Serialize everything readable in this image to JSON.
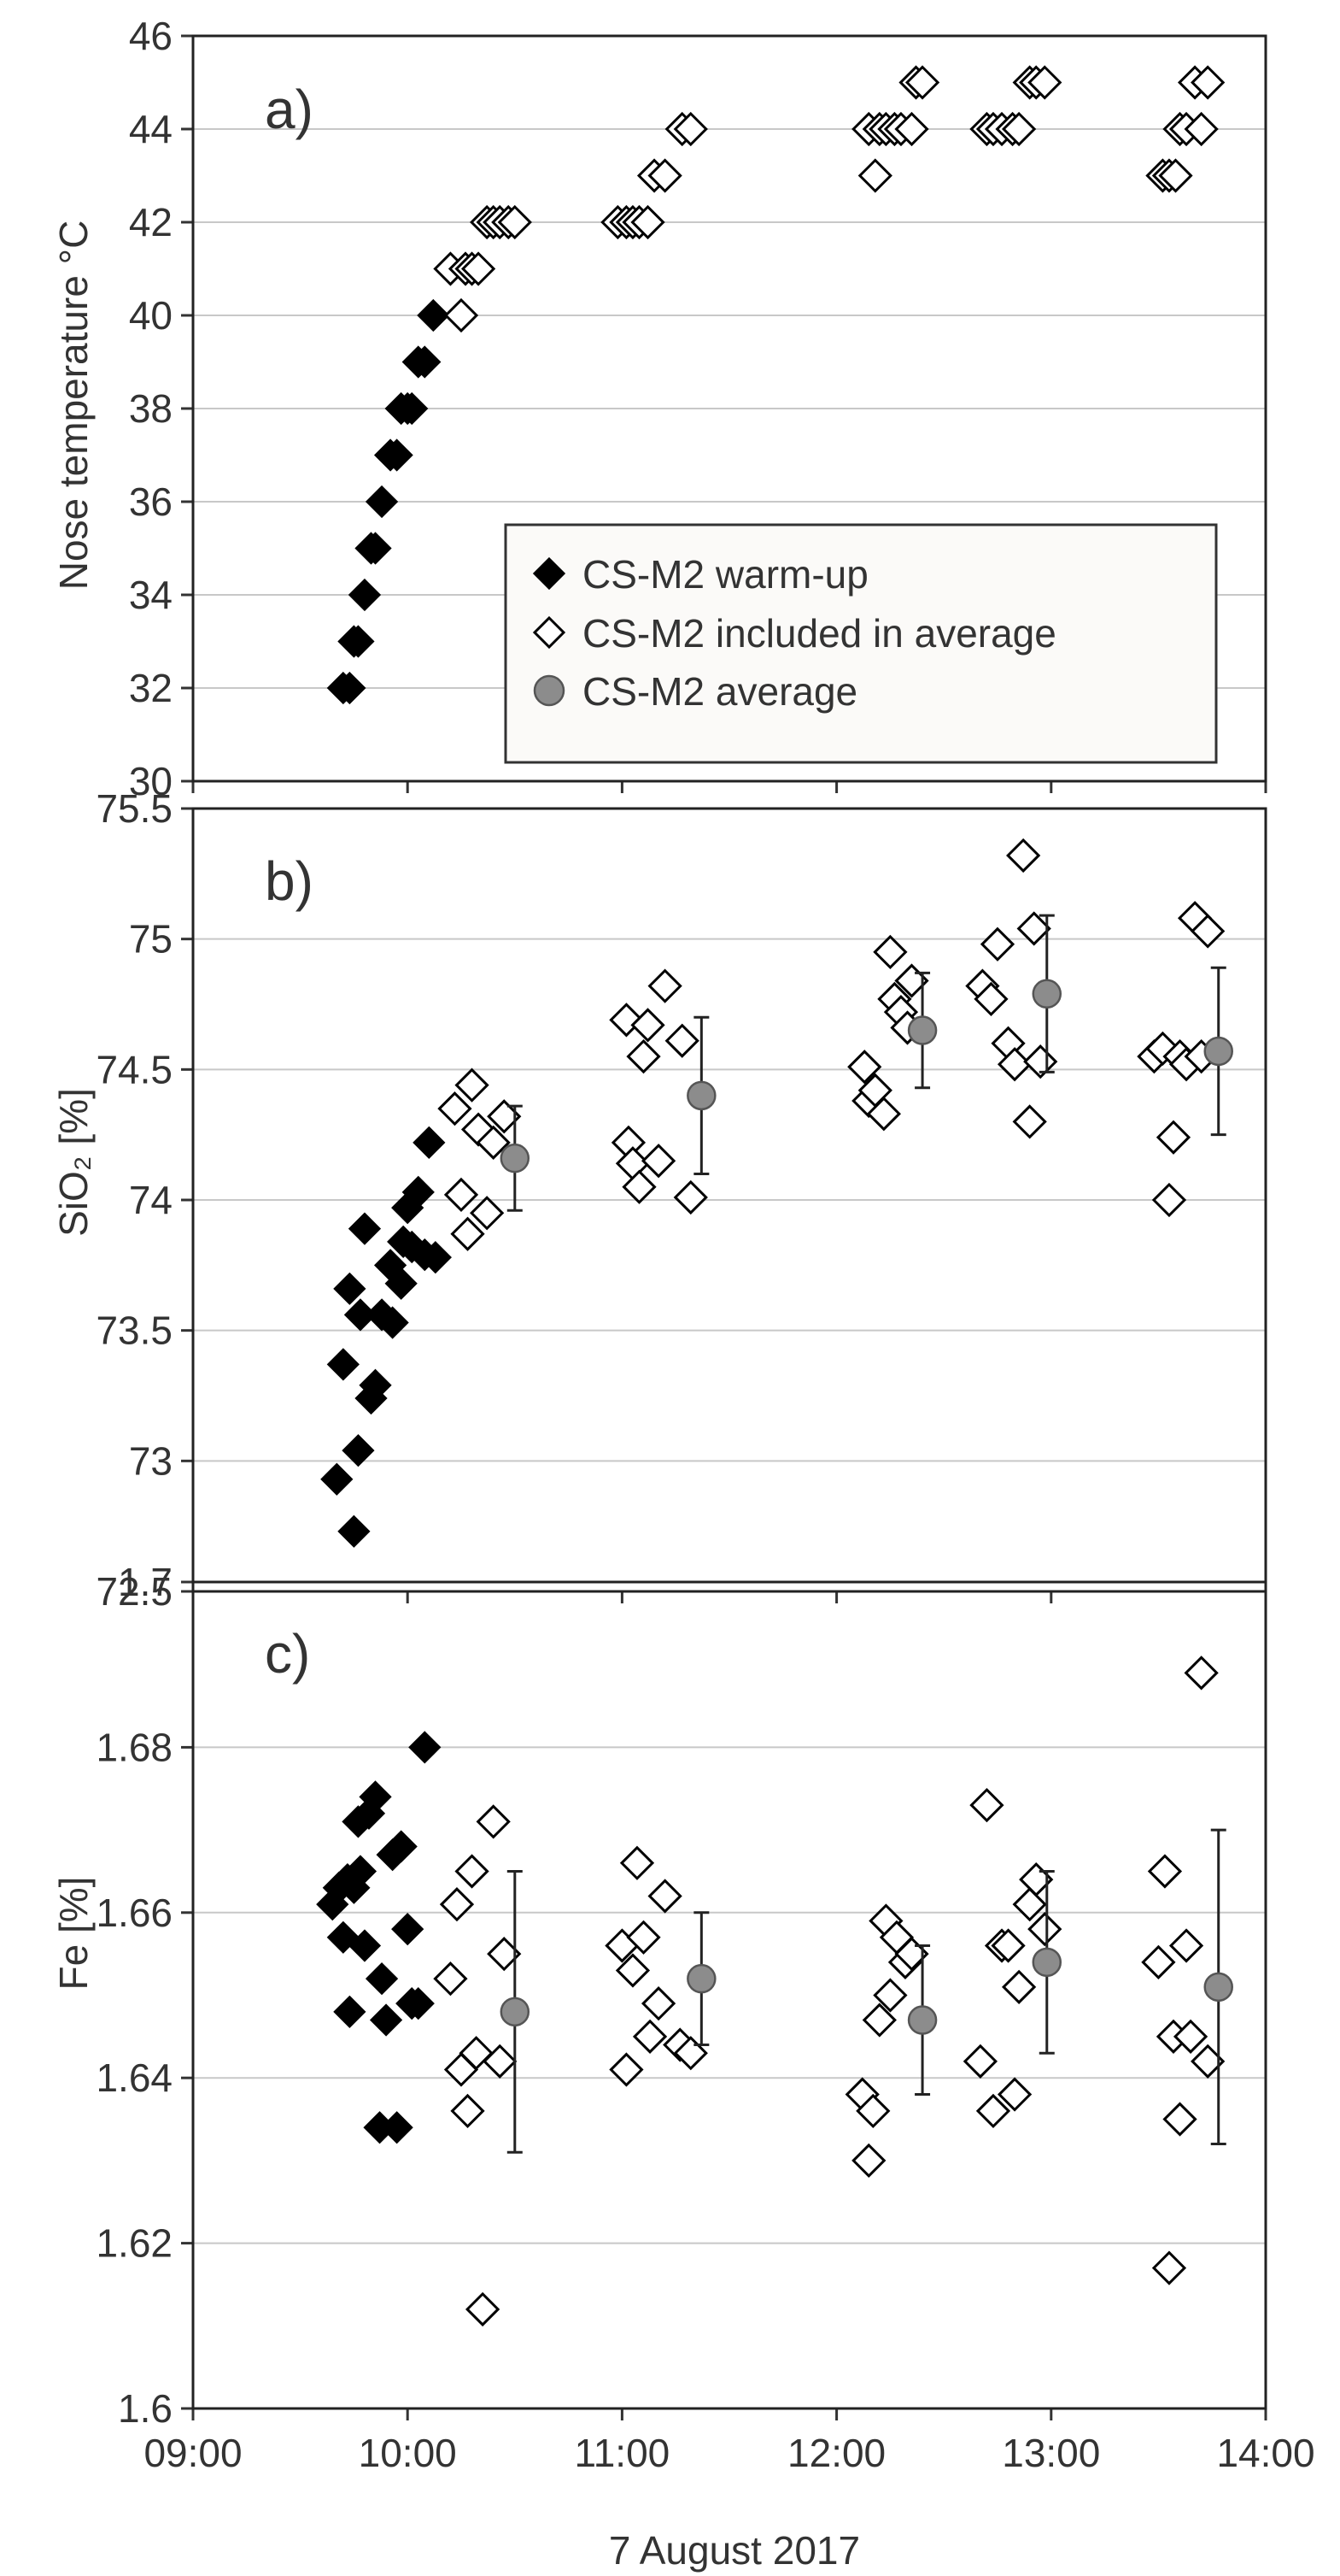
{
  "figure": {
    "xlabel": "7 August 2017",
    "x_ticks": [
      "09:00",
      "10:00",
      "11:00",
      "12:00",
      "13:00",
      "14:00"
    ],
    "x_range_hours": [
      9,
      14
    ]
  },
  "legend": {
    "warmup": "CS-M2 warm-up",
    "included": "CS-M2 included in average",
    "average": "CS-M2 average"
  },
  "colors": {
    "warmup": "#000000",
    "included": "#ffffff",
    "average": "#8c8c8c",
    "grid": "#c8c8c8",
    "axis_text": "#333333"
  },
  "chart_data": [
    {
      "type": "scatter",
      "panel_label": "a)",
      "title": "",
      "xlabel": "",
      "ylabel": "Nose temperature °C",
      "ylim": [
        30,
        46
      ],
      "y_ticks": [
        "30",
        "32",
        "34",
        "36",
        "38",
        "40",
        "42",
        "44",
        "46"
      ],
      "grid": true,
      "legend_position": "lower-right",
      "series": [
        {
          "name": "CS-M2 warm-up",
          "marker": "filled-diamond",
          "points": [
            [
              9.7,
              32
            ],
            [
              9.73,
              32
            ],
            [
              9.75,
              33
            ],
            [
              9.77,
              33
            ],
            [
              9.8,
              34
            ],
            [
              9.83,
              35
            ],
            [
              9.85,
              35
            ],
            [
              9.88,
              36
            ],
            [
              9.92,
              37
            ],
            [
              9.95,
              37
            ],
            [
              9.97,
              38
            ],
            [
              10.0,
              38
            ],
            [
              10.02,
              38
            ],
            [
              10.05,
              39
            ],
            [
              10.08,
              39
            ],
            [
              10.12,
              40
            ]
          ]
        },
        {
          "name": "CS-M2 included in average",
          "marker": "open-diamond",
          "points": [
            [
              10.2,
              41
            ],
            [
              10.25,
              40
            ],
            [
              10.27,
              41
            ],
            [
              10.3,
              41
            ],
            [
              10.33,
              41
            ],
            [
              10.37,
              42
            ],
            [
              10.4,
              42
            ],
            [
              10.43,
              42
            ],
            [
              10.47,
              42
            ],
            [
              10.5,
              42
            ],
            [
              10.98,
              42
            ],
            [
              11.02,
              42
            ],
            [
              11.05,
              42
            ],
            [
              11.08,
              42
            ],
            [
              11.12,
              42
            ],
            [
              11.15,
              43
            ],
            [
              11.2,
              43
            ],
            [
              11.28,
              44
            ],
            [
              11.32,
              44
            ],
            [
              12.15,
              44
            ],
            [
              12.18,
              43
            ],
            [
              12.2,
              44
            ],
            [
              12.23,
              44
            ],
            [
              12.27,
              44
            ],
            [
              12.3,
              44
            ],
            [
              12.35,
              44
            ],
            [
              12.37,
              45
            ],
            [
              12.4,
              45
            ],
            [
              12.7,
              44
            ],
            [
              12.73,
              44
            ],
            [
              12.77,
              44
            ],
            [
              12.82,
              44
            ],
            [
              12.85,
              44
            ],
            [
              12.9,
              45
            ],
            [
              12.93,
              45
            ],
            [
              12.97,
              45
            ],
            [
              13.52,
              43
            ],
            [
              13.55,
              43
            ],
            [
              13.58,
              43
            ],
            [
              13.6,
              44
            ],
            [
              13.63,
              44
            ],
            [
              13.67,
              45
            ],
            [
              13.7,
              44
            ],
            [
              13.73,
              45
            ]
          ]
        }
      ]
    },
    {
      "type": "scatter",
      "panel_label": "b)",
      "title": "",
      "xlabel": "",
      "ylabel": "SiO₂ [%]",
      "ylim": [
        72.5,
        75.5
      ],
      "y_ticks": [
        "72.5",
        "73",
        "73.5",
        "74",
        "74.5",
        "75",
        "75.5"
      ],
      "grid": true,
      "series": [
        {
          "name": "CS-M2 warm-up",
          "marker": "filled-diamond",
          "points": [
            [
              9.67,
              72.93
            ],
            [
              9.7,
              73.37
            ],
            [
              9.73,
              73.66
            ],
            [
              9.75,
              72.73
            ],
            [
              9.77,
              73.04
            ],
            [
              9.78,
              73.56
            ],
            [
              9.8,
              73.89
            ],
            [
              9.83,
              73.24
            ],
            [
              9.85,
              73.29
            ],
            [
              9.88,
              73.56
            ],
            [
              9.92,
              73.75
            ],
            [
              9.93,
              73.53
            ],
            [
              9.97,
              73.68
            ],
            [
              9.98,
              73.84
            ],
            [
              10.0,
              73.97
            ],
            [
              10.02,
              73.82
            ],
            [
              10.05,
              74.03
            ],
            [
              10.08,
              73.79
            ],
            [
              10.1,
              74.22
            ],
            [
              10.13,
              73.78
            ]
          ]
        },
        {
          "name": "CS-M2 included in average",
          "marker": "open-diamond",
          "points": [
            [
              10.22,
              74.35
            ],
            [
              10.25,
              74.02
            ],
            [
              10.28,
              73.87
            ],
            [
              10.3,
              74.44
            ],
            [
              10.33,
              74.27
            ],
            [
              10.37,
              73.95
            ],
            [
              10.4,
              74.22
            ],
            [
              10.45,
              74.32
            ],
            [
              11.02,
              74.69
            ],
            [
              11.03,
              74.22
            ],
            [
              11.05,
              74.14
            ],
            [
              11.08,
              74.05
            ],
            [
              11.1,
              74.55
            ],
            [
              11.12,
              74.67
            ],
            [
              11.17,
              74.15
            ],
            [
              11.2,
              74.82
            ],
            [
              11.28,
              74.61
            ],
            [
              11.32,
              74.01
            ],
            [
              12.13,
              74.51
            ],
            [
              12.15,
              74.38
            ],
            [
              12.18,
              74.42
            ],
            [
              12.22,
              74.33
            ],
            [
              12.25,
              74.95
            ],
            [
              12.27,
              74.77
            ],
            [
              12.3,
              74.72
            ],
            [
              12.33,
              74.66
            ],
            [
              12.35,
              74.84
            ],
            [
              12.68,
              74.82
            ],
            [
              12.72,
              74.77
            ],
            [
              12.75,
              74.98
            ],
            [
              12.8,
              74.6
            ],
            [
              12.83,
              74.52
            ],
            [
              12.87,
              75.32
            ],
            [
              12.9,
              74.3
            ],
            [
              12.92,
              75.04
            ],
            [
              12.95,
              74.53
            ],
            [
              13.48,
              74.55
            ],
            [
              13.52,
              74.58
            ],
            [
              13.55,
              74.0
            ],
            [
              13.57,
              74.24
            ],
            [
              13.6,
              74.55
            ],
            [
              13.63,
              74.52
            ],
            [
              13.67,
              75.08
            ],
            [
              13.7,
              74.55
            ],
            [
              13.73,
              75.03
            ]
          ]
        },
        {
          "name": "CS-M2 average",
          "marker": "filled-circle",
          "points": [
            [
              10.5,
              74.16
            ],
            [
              11.37,
              74.4
            ],
            [
              12.4,
              74.65
            ],
            [
              12.98,
              74.79
            ],
            [
              13.78,
              74.57
            ]
          ],
          "error": [
            0.2,
            0.3,
            0.22,
            0.3,
            0.32
          ]
        }
      ]
    },
    {
      "type": "scatter",
      "panel_label": "c)",
      "title": "",
      "xlabel": "7 August 2017",
      "ylabel": "Fe [%]",
      "ylim": [
        1.6,
        1.7
      ],
      "y_ticks": [
        "1.6",
        "1.62",
        "1.64",
        "1.66",
        "1.68",
        "1.7"
      ],
      "grid": true,
      "series": [
        {
          "name": "CS-M2 warm-up",
          "marker": "filled-diamond",
          "points": [
            [
              9.65,
              1.661
            ],
            [
              9.68,
              1.663
            ],
            [
              9.7,
              1.657
            ],
            [
              9.72,
              1.664
            ],
            [
              9.73,
              1.648
            ],
            [
              9.75,
              1.663
            ],
            [
              9.77,
              1.671
            ],
            [
              9.78,
              1.665
            ],
            [
              9.8,
              1.656
            ],
            [
              9.82,
              1.672
            ],
            [
              9.85,
              1.674
            ],
            [
              9.87,
              1.634
            ],
            [
              9.88,
              1.652
            ],
            [
              9.9,
              1.647
            ],
            [
              9.93,
              1.667
            ],
            [
              9.95,
              1.634
            ],
            [
              9.97,
              1.668
            ],
            [
              10.0,
              1.658
            ],
            [
              10.02,
              1.649
            ],
            [
              10.05,
              1.649
            ],
            [
              10.08,
              1.68
            ]
          ]
        },
        {
          "name": "CS-M2 included in average",
          "marker": "open-diamond",
          "points": [
            [
              10.2,
              1.652
            ],
            [
              10.23,
              1.661
            ],
            [
              10.25,
              1.641
            ],
            [
              10.28,
              1.636
            ],
            [
              10.3,
              1.665
            ],
            [
              10.32,
              1.643
            ],
            [
              10.35,
              1.612
            ],
            [
              10.4,
              1.671
            ],
            [
              10.43,
              1.642
            ],
            [
              10.45,
              1.655
            ],
            [
              11.0,
              1.656
            ],
            [
              11.02,
              1.641
            ],
            [
              11.05,
              1.653
            ],
            [
              11.07,
              1.666
            ],
            [
              11.1,
              1.657
            ],
            [
              11.13,
              1.645
            ],
            [
              11.17,
              1.649
            ],
            [
              11.2,
              1.662
            ],
            [
              11.27,
              1.644
            ],
            [
              11.32,
              1.643
            ],
            [
              12.12,
              1.638
            ],
            [
              12.15,
              1.63
            ],
            [
              12.17,
              1.636
            ],
            [
              12.2,
              1.647
            ],
            [
              12.23,
              1.659
            ],
            [
              12.25,
              1.65
            ],
            [
              12.28,
              1.657
            ],
            [
              12.32,
              1.654
            ],
            [
              12.35,
              1.655
            ],
            [
              12.67,
              1.642
            ],
            [
              12.7,
              1.673
            ],
            [
              12.73,
              1.636
            ],
            [
              12.77,
              1.656
            ],
            [
              12.8,
              1.656
            ],
            [
              12.83,
              1.638
            ],
            [
              12.85,
              1.651
            ],
            [
              12.9,
              1.661
            ],
            [
              12.93,
              1.664
            ],
            [
              12.97,
              1.658
            ],
            [
              13.5,
              1.654
            ],
            [
              13.53,
              1.665
            ],
            [
              13.55,
              1.617
            ],
            [
              13.57,
              1.645
            ],
            [
              13.6,
              1.635
            ],
            [
              13.63,
              1.656
            ],
            [
              13.65,
              1.645
            ],
            [
              13.7,
              1.689
            ],
            [
              13.73,
              1.642
            ]
          ]
        },
        {
          "name": "CS-M2 average",
          "marker": "filled-circle",
          "points": [
            [
              10.5,
              1.648
            ],
            [
              11.37,
              1.652
            ],
            [
              12.4,
              1.647
            ],
            [
              12.98,
              1.654
            ],
            [
              13.78,
              1.651
            ]
          ],
          "error": [
            0.017,
            0.008,
            0.009,
            0.011,
            0.019
          ]
        }
      ]
    }
  ]
}
